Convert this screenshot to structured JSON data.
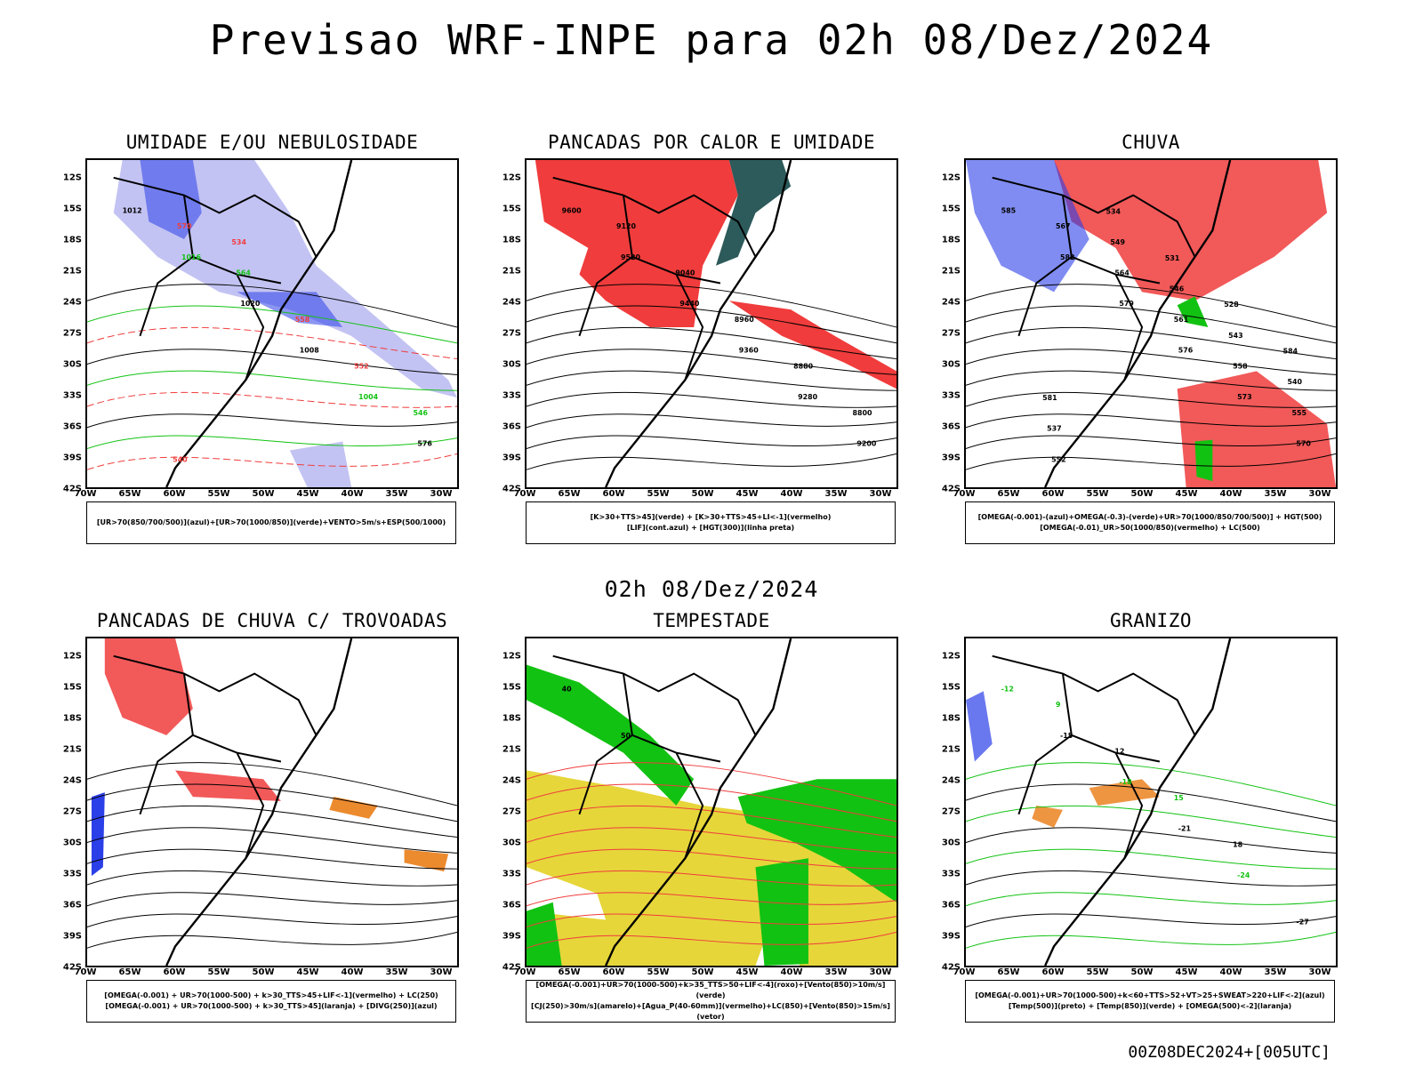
{
  "header": {
    "title": "Previsao WRF-INPE  para 02h 08/Dez/2024",
    "subtitle": "02h 08/Dez/2024",
    "footer": "00Z08DEC2024+[005UTC]"
  },
  "axes": {
    "lat_ticks": [
      "12S",
      "15S",
      "18S",
      "21S",
      "24S",
      "27S",
      "30S",
      "33S",
      "36S",
      "39S",
      "42S"
    ],
    "lon_ticks": [
      "70W",
      "65W",
      "60W",
      "55W",
      "50W",
      "45W",
      "40W",
      "35W",
      "30W"
    ]
  },
  "colors": {
    "red": "#f03c3c",
    "blue": "#2b3fe8",
    "lightblue": "#b4b4f0",
    "green": "#12c212",
    "darkteal": "#2d5a5a",
    "yellow": "#e6d63a",
    "orange": "#ec8a2e"
  },
  "panels": [
    {
      "id": "umidade",
      "title": "UMIDADE E/OU NEBULOSIDADE",
      "legend": [
        "[UR>70(850/700/500)](azul)+[UR>70(1000/850)](verde)+VENTO>5m/s+ESP(500/1000)"
      ],
      "labels": [
        "1012",
        "1016",
        "1020",
        "1008",
        "1004",
        "576",
        "570",
        "564",
        "558",
        "552",
        "546",
        "540",
        "534"
      ]
    },
    {
      "id": "pancadas-calor",
      "title": "PANCADAS POR CALOR E UMIDADE",
      "legend": [
        "[K>30+TTS>45](verde) + [K>30+TTS>45+LI<-1](vermelho)",
        "[LIF](cont.azul) + [HGT(300)](linha preta)"
      ],
      "labels": [
        "9600",
        "9520",
        "9440",
        "9360",
        "9280",
        "9200",
        "9120",
        "9040",
        "8960",
        "8880",
        "8800"
      ]
    },
    {
      "id": "chuva",
      "title": "CHUVA",
      "legend": [
        "[OMEGA(-0.001)-(azul)+OMEGA(-0.3)-(verde)+UR>70(1000/850/700/500)] + HGT(500)",
        "[OMEGA(-0.01)_UR>50(1000/850)(vermelho) + LC(500)"
      ],
      "labels": [
        "585",
        "582",
        "579",
        "576",
        "573",
        "570",
        "567",
        "564",
        "561",
        "558",
        "555",
        "552",
        "549",
        "546",
        "543",
        "540",
        "537",
        "534",
        "531",
        "528",
        "584",
        "581"
      ]
    },
    {
      "id": "trovoadas",
      "title": "PANCADAS DE CHUVA C/ TROVOADAS",
      "legend": [
        "[OMEGA(-0.001) + UR>70(1000-500) + k>30_TTS>45+LIF<-1](vermelho) + LC(250)",
        "[OMEGA(-0.001) + UR>70(1000-500) + k>30_TTS>45](laranja) + [DIVG(250)](azul)"
      ],
      "labels": []
    },
    {
      "id": "tempestade",
      "title": "TEMPESTADE",
      "legend": [
        "[OMEGA(-0.001)+UR>70(1000-500)+k>35_TTS>50+LIF<-4](roxo)+[Vento(850)>10m/s](verde)",
        "[CJ(250)>30m/s](amarelo)+[Agua_P(40-60mm)](vermelho)+LC(850)+[Vento(850)>15m/s](vetor)"
      ],
      "labels": [
        "40",
        "50"
      ]
    },
    {
      "id": "granizo",
      "title": "GRANIZO",
      "legend": [
        "[OMEGA(-0.001)+UR>70(1000-500)+k<60+TTS>52+VT>25+SWEAT>220+LIF<-2](azul)",
        "[Temp(500)](preto) + [Temp(850)](verde) + [OMEGA(500)<-2](laranja)"
      ],
      "labels": [
        "-12",
        "-15",
        "-18",
        "-21",
        "-24",
        "-27",
        "9",
        "12",
        "15",
        "18"
      ]
    }
  ]
}
